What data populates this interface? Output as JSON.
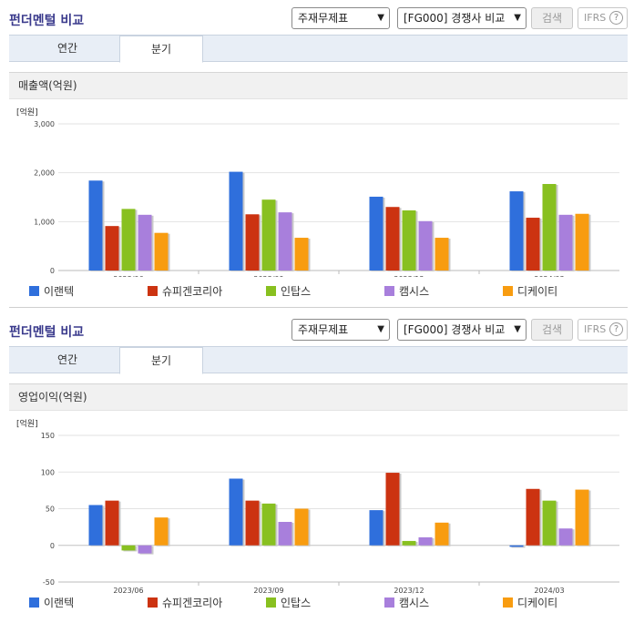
{
  "panels": [
    {
      "title": "펀더멘털 비교",
      "select1": "주재무제표",
      "select2": "[FG000] 경쟁사 비교",
      "search_label": "검색",
      "ifrs_label": "IFRS",
      "ifrs_help": "?",
      "tabs": [
        {
          "label": "연간"
        },
        {
          "label": "분기"
        }
      ],
      "metric": "매출액(억원)",
      "unit": "[억원]",
      "chart_data": {
        "type": "bar",
        "title": "매출액(억원)",
        "ylabel": "[억원]",
        "ylim": [
          0,
          3000
        ],
        "yticks": [
          0,
          1000,
          2000,
          3000
        ],
        "ytick_labels": [
          "0",
          "1,000",
          "2,000",
          "3,000"
        ],
        "categories": [
          "2023/06",
          "2023/09",
          "2023/12",
          "2024/03"
        ],
        "series": [
          {
            "name": "이랜텍",
            "color": "#2f6fdc",
            "values": [
              1840,
              2020,
              1510,
              1620
            ]
          },
          {
            "name": "슈피겐코리아",
            "color": "#cc3311",
            "values": [
              910,
              1150,
              1300,
              1080
            ]
          },
          {
            "name": "인탑스",
            "color": "#88c020",
            "values": [
              1260,
              1450,
              1230,
              1770
            ]
          },
          {
            "name": "캠시스",
            "color": "#a87fdc",
            "values": [
              1140,
              1190,
              1010,
              1140
            ]
          },
          {
            "name": "디케이티",
            "color": "#f89c10",
            "values": [
              770,
              670,
              670,
              1160
            ]
          }
        ]
      }
    },
    {
      "title": "펀더멘털 비교",
      "select1": "주재무제표",
      "select2": "[FG000] 경쟁사 비교",
      "search_label": "검색",
      "ifrs_label": "IFRS",
      "ifrs_help": "?",
      "tabs": [
        {
          "label": "연간"
        },
        {
          "label": "분기"
        }
      ],
      "metric": "영업이익(억원)",
      "unit": "[억원]",
      "chart_data": {
        "type": "bar",
        "title": "영업이익(억원)",
        "ylabel": "[억원]",
        "ylim": [
          -50,
          150
        ],
        "yticks": [
          -50,
          0,
          50,
          100,
          150
        ],
        "ytick_labels": [
          "-50",
          "0",
          "50",
          "100",
          "150"
        ],
        "categories": [
          "2023/06",
          "2023/09",
          "2023/12",
          "2024/03"
        ],
        "series": [
          {
            "name": "이랜텍",
            "color": "#2f6fdc",
            "values": [
              55,
              91,
              48,
              -2
            ]
          },
          {
            "name": "슈피겐코리아",
            "color": "#cc3311",
            "values": [
              61,
              61,
              99,
              77
            ]
          },
          {
            "name": "인탑스",
            "color": "#88c020",
            "values": [
              -7,
              57,
              6,
              61
            ]
          },
          {
            "name": "캠시스",
            "color": "#a87fdc",
            "values": [
              -11,
              32,
              11,
              23
            ]
          },
          {
            "name": "디케이티",
            "color": "#f89c10",
            "values": [
              38,
              50,
              31,
              76
            ]
          }
        ]
      }
    }
  ]
}
